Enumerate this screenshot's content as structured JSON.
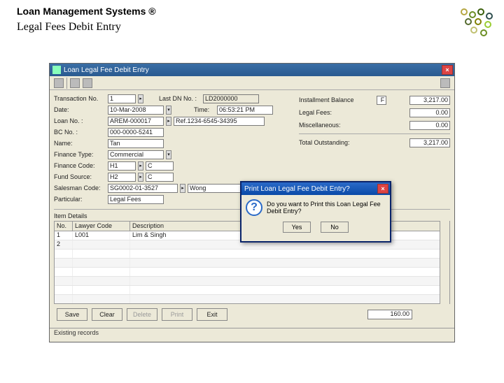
{
  "header": {
    "system_title": "Loan Management Systems ®",
    "page_title": "Legal Fees Debit Entry"
  },
  "window": {
    "title": "Loan Legal Fee Debit Entry"
  },
  "form": {
    "transaction_label": "Transaction No.",
    "transaction_value": "1",
    "lastdn_label": "Last DN No. :",
    "lastdn_value": "LD2000000",
    "date_label": "Date:",
    "date_value": "10-Mar-2008",
    "time_label": "Time:",
    "time_value": "06:53:21 PM",
    "loan_label": "Loan No. :",
    "loan_value": "AREM-000017",
    "loan_right": "Ref.1234-6545-34395",
    "bc_label": "BC No. :",
    "bc_value": "000-0000-5241",
    "name_label": "Name:",
    "name_value": "Tan",
    "fintype_label": "Finance Type:",
    "fintype_value": "Commercial",
    "fincode_label": "Finance Code:",
    "fincode_v1": "H1",
    "fincode_v2": "C",
    "fundsrc_label": "Fund Source:",
    "fundsrc_v1": "H2",
    "fundsrc_v2": "C",
    "salesman_label": "Salesman Code:",
    "salesman_v1": "SG0002-01-3527",
    "salesman_v2": "Wong",
    "particular_label": "Particular:",
    "particular_value": "Legal Fees"
  },
  "right": {
    "instbal_label": "Installment Balance",
    "instbal_flag": "F",
    "instbal_value": "3,217.00",
    "legal_label": "Legal Fees:",
    "legal_value": "0.00",
    "misc_label": "Miscellaneous:",
    "misc_value": "0.00",
    "total_label": "Total Outstanding:",
    "total_value": "3,217.00"
  },
  "grid": {
    "item_label": "Item Details",
    "cols": {
      "no": "No.",
      "lawyer": "Lawyer Code",
      "desc": "Description"
    },
    "col_widths": {
      "no": 26,
      "lawyer": 82,
      "desc": 420
    },
    "rows": [
      {
        "no": "1",
        "lawyer": "L001",
        "desc": "Lim & Singh"
      },
      {
        "no": "2",
        "lawyer": "",
        "desc": ""
      }
    ]
  },
  "buttons": {
    "save": "Save",
    "clear": "Clear",
    "delete": "Delete",
    "print": "Print",
    "exit": "Exit",
    "total": "160.00"
  },
  "status": "Existing records",
  "dialog": {
    "title": "Print Loan Legal Fee Debit Entry?",
    "message": "Do you want to Print this Loan Legal Fee Debit Entry?",
    "yes": "Yes",
    "no": "No"
  },
  "deco": {
    "colors": [
      "#b5a642",
      "#6b8e23",
      "#3a5f0b",
      "#2f4f4f",
      "#556b2f",
      "#808000",
      "#9acd32",
      "#c0c070"
    ]
  }
}
